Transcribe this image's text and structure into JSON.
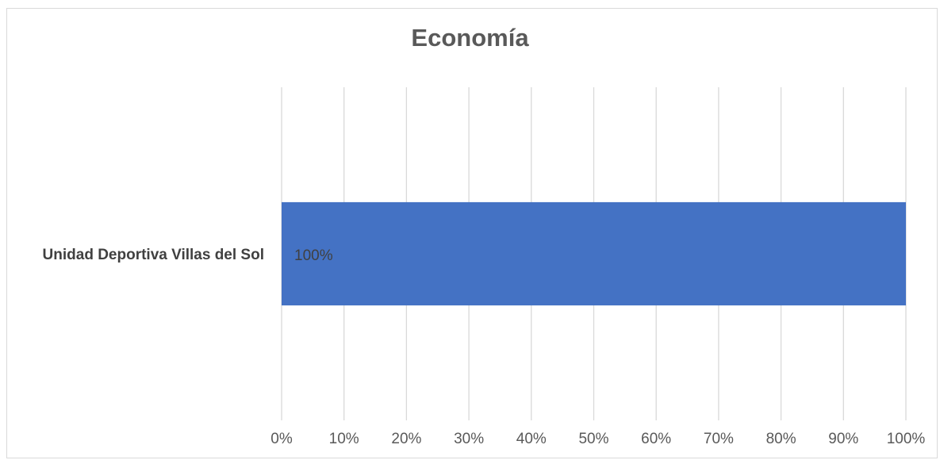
{
  "chart_data": {
    "type": "bar",
    "orientation": "horizontal",
    "title": "Economía",
    "categories": [
      "Unidad Deportiva Villas del Sol"
    ],
    "series": [
      {
        "values": [
          100
        ],
        "data_labels": [
          "100%"
        ],
        "color": "#4472C4"
      }
    ],
    "xlim": [
      0,
      100
    ],
    "xticks": [
      0,
      10,
      20,
      30,
      40,
      50,
      60,
      70,
      80,
      90,
      100
    ],
    "xtick_labels": [
      "0%",
      "10%",
      "20%",
      "30%",
      "40%",
      "50%",
      "60%",
      "70%",
      "80%",
      "90%",
      "100%"
    ],
    "grid": true,
    "gridline_color": "#d9d9d9",
    "legend": "none"
  }
}
